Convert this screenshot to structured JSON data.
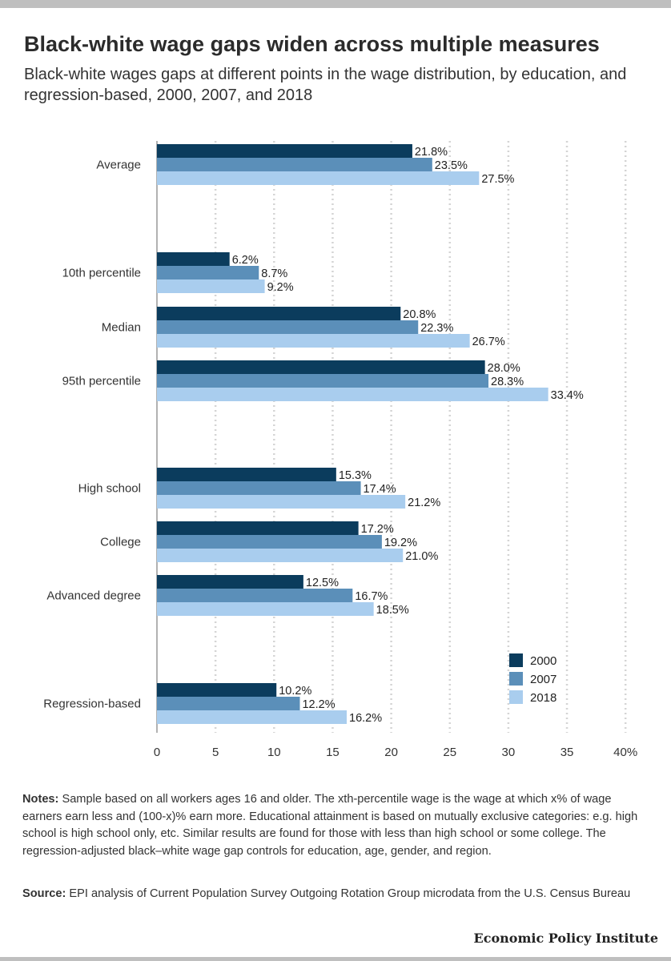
{
  "header": {
    "title": "Black-white wage gaps widen across multiple measures",
    "subtitle": "Black-white wages gaps at different points in the wage distribution, by education, and regression-based, 2000, 2007, and 2018"
  },
  "footer": {
    "notes_label": "Notes:",
    "notes_text": " Sample based on all workers ages 16 and older. The xth-percentile wage is the wage at which x% of wage earners earn less and (100-x)% earn more. Educational attainment is based on mutually exclusive categories: e.g. high school is high school only, etc. Similar results are found for those with less than high school or some college. The regression-adjusted black–white wage gap controls for education, age, gender, and region.",
    "source_label": "Source:",
    "source_text": " EPI analysis of Current Population Survey Outgoing Rotation Group microdata from the U.S. Census Bureau",
    "credit": "Economic Policy Institute"
  },
  "chart_data": {
    "type": "bar",
    "orientation": "horizontal",
    "categories": [
      "Average",
      "10th percentile",
      "Median",
      "95th percentile",
      "High school",
      "College",
      "Advanced degree",
      "Regression-based"
    ],
    "series": [
      {
        "name": "2000",
        "color": "#0b3c5d",
        "values": [
          21.8,
          6.2,
          20.8,
          28.0,
          15.3,
          17.2,
          12.5,
          10.2
        ]
      },
      {
        "name": "2007",
        "color": "#5b8fb9",
        "values": [
          23.5,
          8.7,
          22.3,
          28.3,
          17.4,
          19.2,
          16.7,
          12.2
        ]
      },
      {
        "name": "2018",
        "color": "#a9cdee",
        "values": [
          27.5,
          9.2,
          26.7,
          33.4,
          21.2,
          21.0,
          18.5,
          16.2
        ]
      }
    ],
    "data_labels": [
      [
        "21.8%",
        "23.5%",
        "27.5%"
      ],
      [
        "6.2%",
        "8.7%",
        "9.2%"
      ],
      [
        "20.8%",
        "22.3%",
        "26.7%"
      ],
      [
        "28.0%",
        "28.3%",
        "33.4%"
      ],
      [
        "15.3%",
        "17.4%",
        "21.2%"
      ],
      [
        "17.2%",
        "19.2%",
        "21.0%"
      ],
      [
        "12.5%",
        "16.7%",
        "18.5%"
      ],
      [
        "10.2%",
        "12.2%",
        "16.2%"
      ]
    ],
    "xlim": [
      0,
      40
    ],
    "x_ticks": [
      0,
      5,
      10,
      15,
      20,
      25,
      30,
      35,
      40
    ],
    "x_tick_labels": [
      "0",
      "5",
      "10",
      "15",
      "20",
      "25",
      "30",
      "35",
      "40%"
    ],
    "grid": true,
    "legend_position": "bottom-right"
  }
}
